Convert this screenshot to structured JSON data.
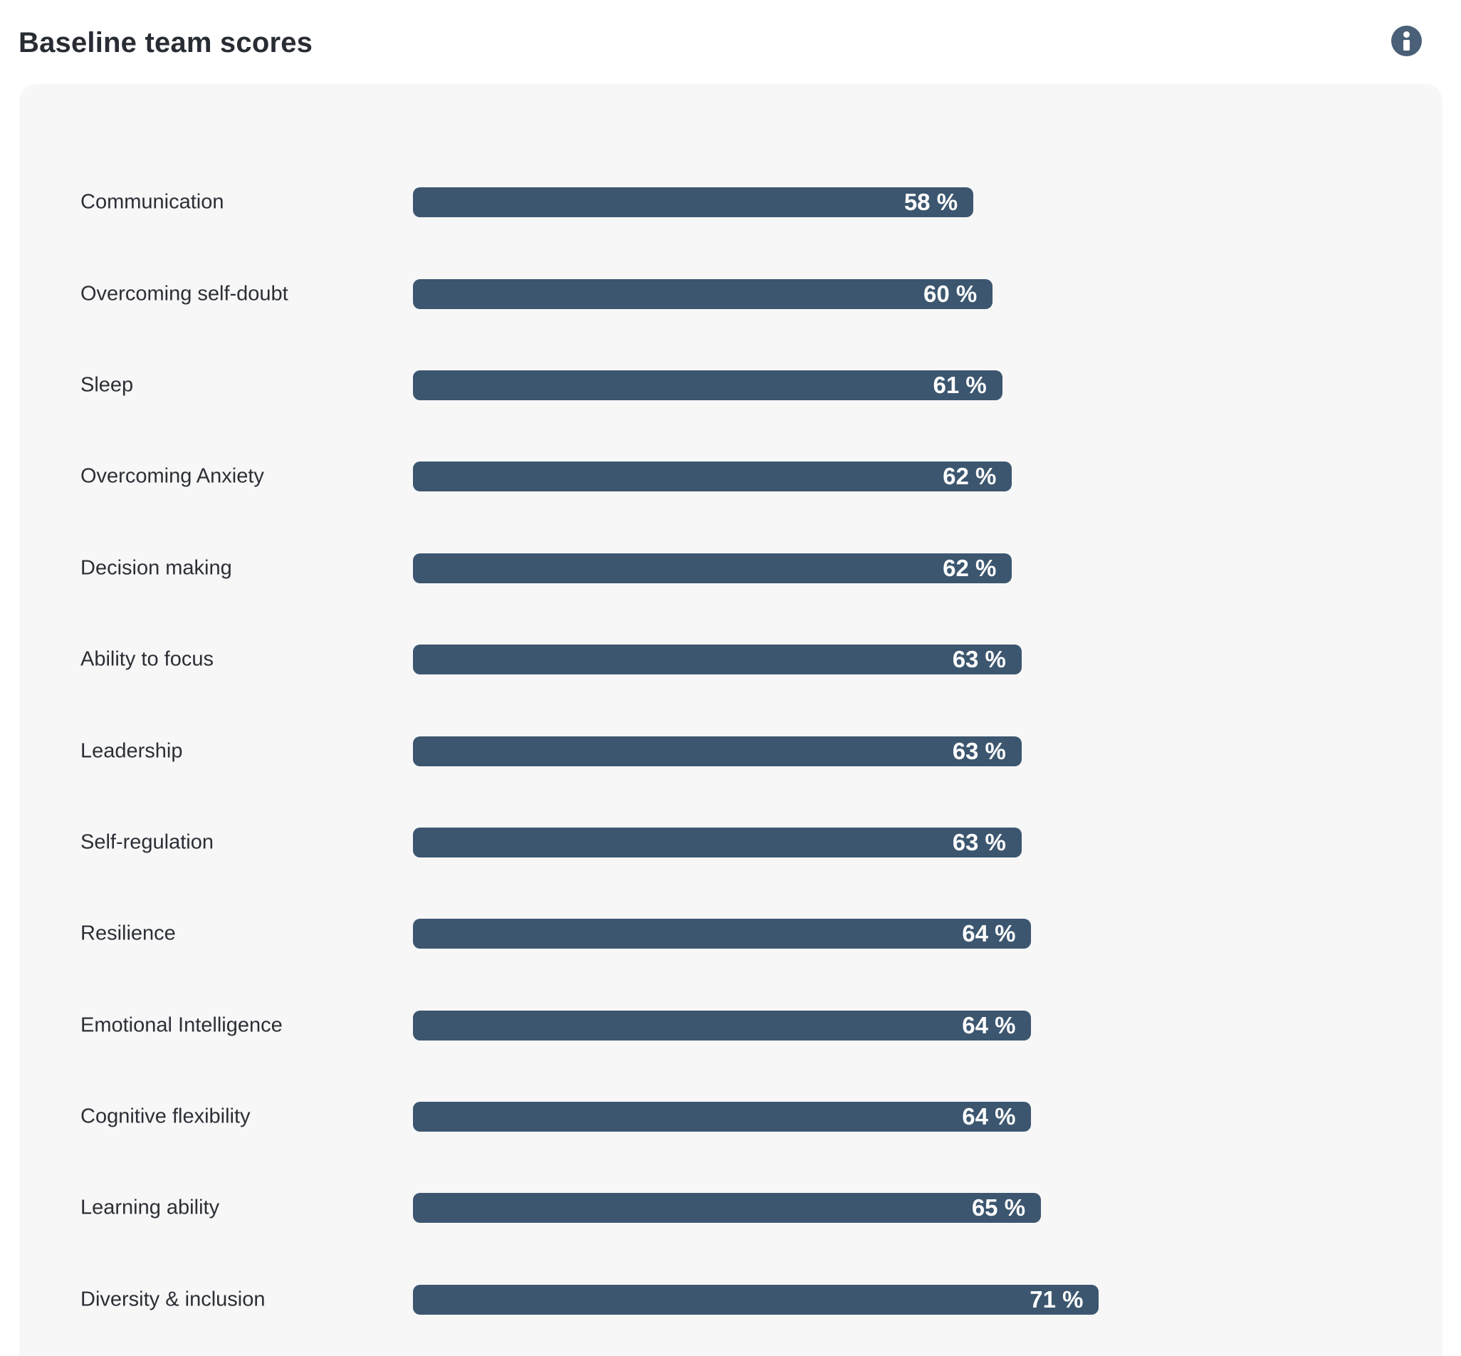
{
  "header": {
    "title": "Baseline team scores",
    "info_icon": "info-icon"
  },
  "colors": {
    "bar": "#3c566f",
    "panel_background": "#f7f7f8",
    "page_background": "#ffffff",
    "info_icon_background": "#4a6078",
    "label_text": "#2b2f35",
    "value_text": "#ffffff",
    "title_text": "#282c33"
  },
  "chart_data": {
    "type": "bar",
    "orientation": "horizontal",
    "title": "Baseline team scores",
    "categories": [
      "Communication",
      "Overcoming self-doubt",
      "Sleep",
      "Overcoming Anxiety",
      "Decision making",
      "Ability to focus",
      "Leadership",
      "Self-regulation",
      "Resilience",
      "Emotional Intelligence",
      "Cognitive flexibility",
      "Learning ability",
      "Diversity & inclusion"
    ],
    "values": [
      58,
      60,
      61,
      62,
      62,
      63,
      63,
      63,
      64,
      64,
      64,
      65,
      71
    ],
    "value_suffix": " %",
    "value_labels": [
      "58 %",
      "60 %",
      "61 %",
      "62 %",
      "62 %",
      "63 %",
      "63 %",
      "63 %",
      "64 %",
      "64 %",
      "64 %",
      "65 %",
      "71 %"
    ],
    "xlabel": "",
    "ylabel": "",
    "xlim": [
      0,
      100
    ],
    "grid": false,
    "legend": false,
    "value_labels_position": "inside-end"
  }
}
